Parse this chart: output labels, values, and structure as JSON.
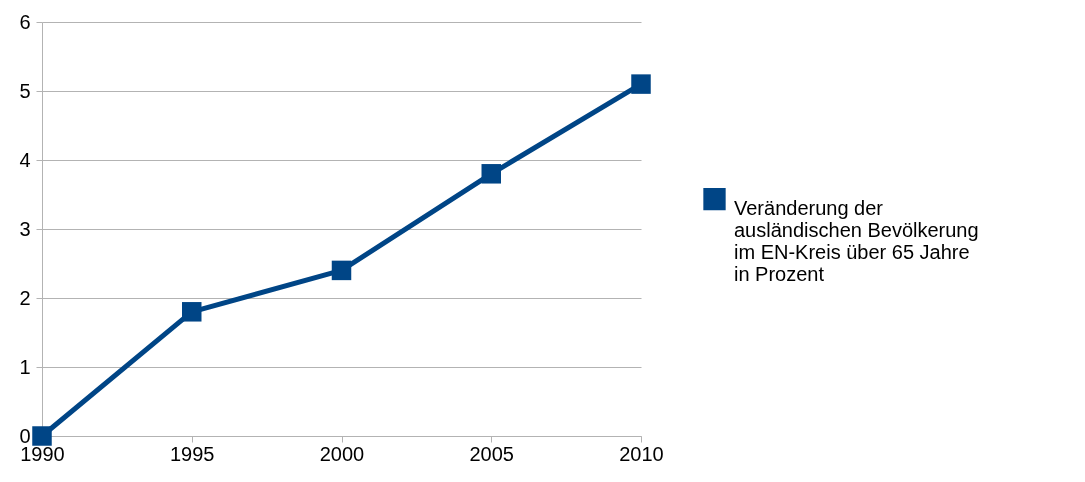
{
  "chart_data": {
    "type": "line",
    "x": [
      1990,
      1995,
      2000,
      2005,
      2010
    ],
    "series": [
      {
        "name": "Veränderung der ausländischen Bevölkerung im EN-Kreis über 65 Jahre in Prozent",
        "color": "#004586",
        "values": [
          0,
          1.8,
          2.4,
          3.8,
          5.1
        ]
      }
    ],
    "xlim": [
      1990,
      2010
    ],
    "xticks": [
      1990,
      1995,
      2000,
      2005,
      2010
    ],
    "ylim": [
      0,
      6
    ],
    "yticks": [
      0,
      1,
      2,
      3,
      4,
      5,
      6
    ],
    "grid": "y",
    "legend": "right",
    "marker": "square",
    "line_style": "solid"
  }
}
